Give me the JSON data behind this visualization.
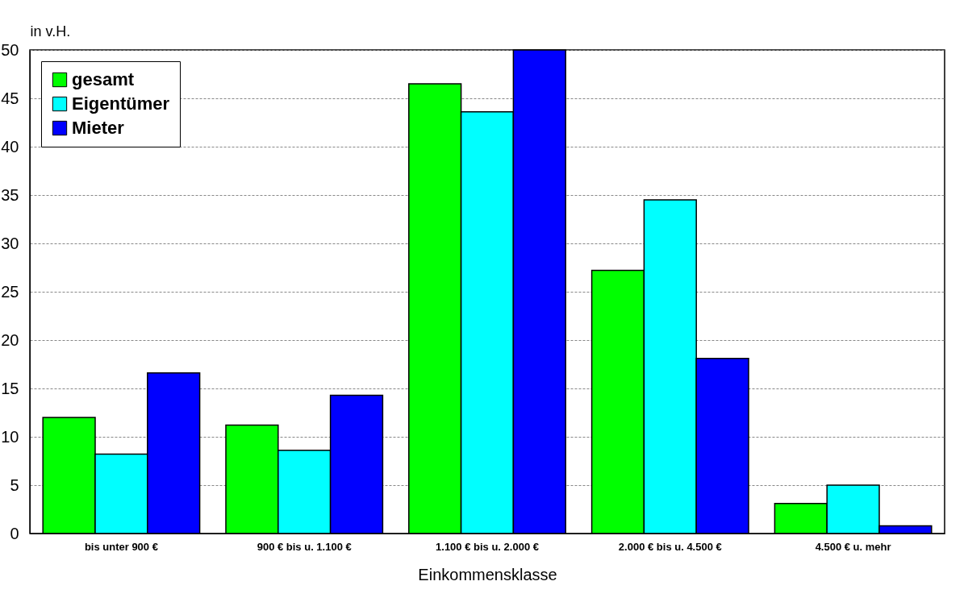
{
  "chart_data": {
    "type": "bar",
    "ylabel": "in v.H.",
    "xlabel": "Einkommensklasse",
    "categories": [
      "bis unter 900 €",
      "900 € bis u. 1.100 €",
      "1.100 € bis u. 2.000 €",
      "2.000 € bis u. 4.500 €",
      "4.500 € u. mehr"
    ],
    "series": [
      {
        "name": "gesamt",
        "color": "#00ff00",
        "values": [
          12.0,
          11.2,
          46.5,
          27.2,
          3.1
        ]
      },
      {
        "name": "Eigentümer",
        "color": "#00ffff",
        "values": [
          8.2,
          8.6,
          43.6,
          34.5,
          5.0
        ]
      },
      {
        "name": "Mieter",
        "color": "#0000ff",
        "values": [
          16.6,
          14.3,
          50.0,
          18.1,
          0.8
        ]
      }
    ],
    "ylim": [
      0,
      50
    ],
    "yticks": [
      0,
      5,
      10,
      15,
      20,
      25,
      30,
      35,
      40,
      45,
      50
    ],
    "grid": "y",
    "legend": "top left"
  }
}
